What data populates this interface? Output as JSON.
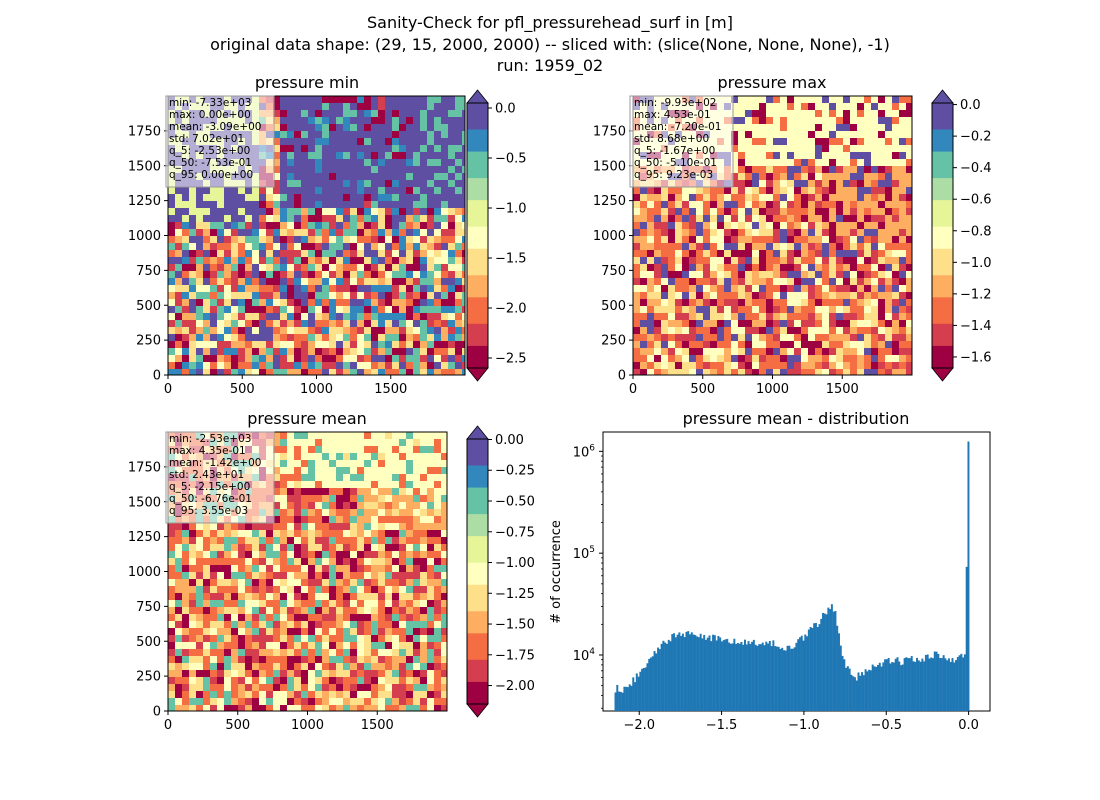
{
  "figure": {
    "suptitle_lines": [
      "Sanity-Check for pfl_pressurehead_surf in [m]",
      "original data shape: (29, 15, 2000, 2000) -- sliced with: (slice(None, None, None), -1)",
      "run: 1959_02"
    ]
  },
  "colors": {
    "spectral": [
      "#9e0142",
      "#d53e4f",
      "#f46d43",
      "#fdae61",
      "#fee08b",
      "#ffffbf",
      "#e6f598",
      "#abdda4",
      "#66c2a5",
      "#3288bd",
      "#5e4fa2"
    ],
    "hist_bar": "#1f77b4"
  },
  "chart_data": [
    {
      "type": "heatmap",
      "title": "pressure min",
      "xticks": [
        "0",
        "500",
        "1000",
        "1500"
      ],
      "yticks": [
        "0",
        "250",
        "500",
        "750",
        "1000",
        "1250",
        "1500",
        "1750"
      ],
      "xlim": [
        0,
        2000
      ],
      "ylim": [
        0,
        2000
      ],
      "colorbar": {
        "ticks": [
          "0.0",
          "−0.5",
          "−1.0",
          "−1.5",
          "−2.0",
          "−2.5"
        ],
        "range": [
          -2.6,
          0.05
        ],
        "extend": "both"
      },
      "stats": [
        "min: -7.33e+03",
        "max: 0.00e+00",
        "mean: -3.09e+00",
        "std: 7.02e+01",
        "q_5: -2.53e+00",
        "q_50: -7.53e-01",
        "q_95: 0.00e+00"
      ]
    },
    {
      "type": "heatmap",
      "title": "pressure max",
      "xticks": [
        "0",
        "500",
        "1000",
        "1500"
      ],
      "yticks": [
        "0",
        "250",
        "500",
        "750",
        "1000",
        "1250",
        "1500",
        "1750"
      ],
      "xlim": [
        0,
        2000
      ],
      "ylim": [
        0,
        2000
      ],
      "colorbar": {
        "ticks": [
          "0.0",
          "−0.2",
          "−0.4",
          "−0.6",
          "−0.8",
          "−1.0",
          "−1.2",
          "−1.4",
          "−1.6"
        ],
        "range": [
          -1.67,
          0.01
        ],
        "extend": "both"
      },
      "stats": [
        "min: -9.93e+02",
        "max: 4.53e-01",
        "mean: -7.20e-01",
        "std: 8.68e+00",
        "q_5: -1.67e+00",
        "q_50: -5.10e-01",
        "q_95: 9.23e-03"
      ]
    },
    {
      "type": "heatmap",
      "title": "pressure mean",
      "xticks": [
        "0",
        "500",
        "1000",
        "1500"
      ],
      "yticks": [
        "0",
        "250",
        "500",
        "750",
        "1000",
        "1250",
        "1500",
        "1750"
      ],
      "xlim": [
        0,
        2000
      ],
      "ylim": [
        0,
        2000
      ],
      "colorbar": {
        "ticks": [
          "0.00",
          "−0.25",
          "−0.50",
          "−0.75",
          "−1.00",
          "−1.25",
          "−1.50",
          "−1.75",
          "−2.00"
        ],
        "range": [
          -2.15,
          0.004
        ],
        "extend": "both"
      },
      "stats": [
        "min: -2.53e+03",
        "max: 4.35e-01",
        "mean: -1.42e+00",
        "std: 2.43e+01",
        "q_5: -2.15e+00",
        "q_50: -6.76e-01",
        "q_95: 3.55e-03"
      ]
    },
    {
      "type": "bar",
      "title": "pressure mean - distribution",
      "ylabel": "# of occurrence",
      "yscale": "log",
      "xlim": [
        -2.22,
        0.13
      ],
      "ylim_log10": [
        3.45,
        6.19
      ],
      "xticks": [
        "−2.0",
        "−1.5",
        "−1.0",
        "−0.5",
        "0.0"
      ],
      "yticks": [
        "10^4",
        "10^5",
        "10^6"
      ],
      "bins": {
        "start": -2.15,
        "stop": 0.004,
        "count": 200
      },
      "counts_anchor_x": [
        -2.15,
        -2.14,
        -2.12,
        -2.1,
        -2.08,
        -2.05,
        -2.0,
        -1.95,
        -1.9,
        -1.85,
        -1.8,
        -1.75,
        -1.7,
        -1.6,
        -1.5,
        -1.4,
        -1.3,
        -1.2,
        -1.15,
        -1.1,
        -1.05,
        -1.0,
        -0.97,
        -0.94,
        -0.9,
        -0.87,
        -0.85,
        -0.83,
        -0.81,
        -0.79,
        -0.77,
        -0.75,
        -0.73,
        -0.7,
        -0.67,
        -0.64,
        -0.62,
        -0.6,
        -0.55,
        -0.5,
        -0.45,
        -0.4,
        -0.35,
        -0.3,
        -0.25,
        -0.2,
        -0.15,
        -0.1,
        -0.05,
        -0.02,
        0.0
      ],
      "counts_anchor_y": [
        3800,
        4800,
        4400,
        4600,
        4900,
        5400,
        6500,
        8500,
        11000,
        13500,
        15000,
        15500,
        16000,
        15000,
        14000,
        13500,
        13000,
        13500,
        12500,
        12000,
        12500,
        15000,
        17000,
        19000,
        22000,
        26000,
        29000,
        31000,
        26000,
        16000,
        11000,
        8500,
        7000,
        6000,
        6200,
        6600,
        7000,
        7400,
        8000,
        8500,
        8800,
        8700,
        9000,
        8900,
        9400,
        10000,
        9500,
        9000,
        9500,
        11000,
        1250000
      ]
    }
  ]
}
